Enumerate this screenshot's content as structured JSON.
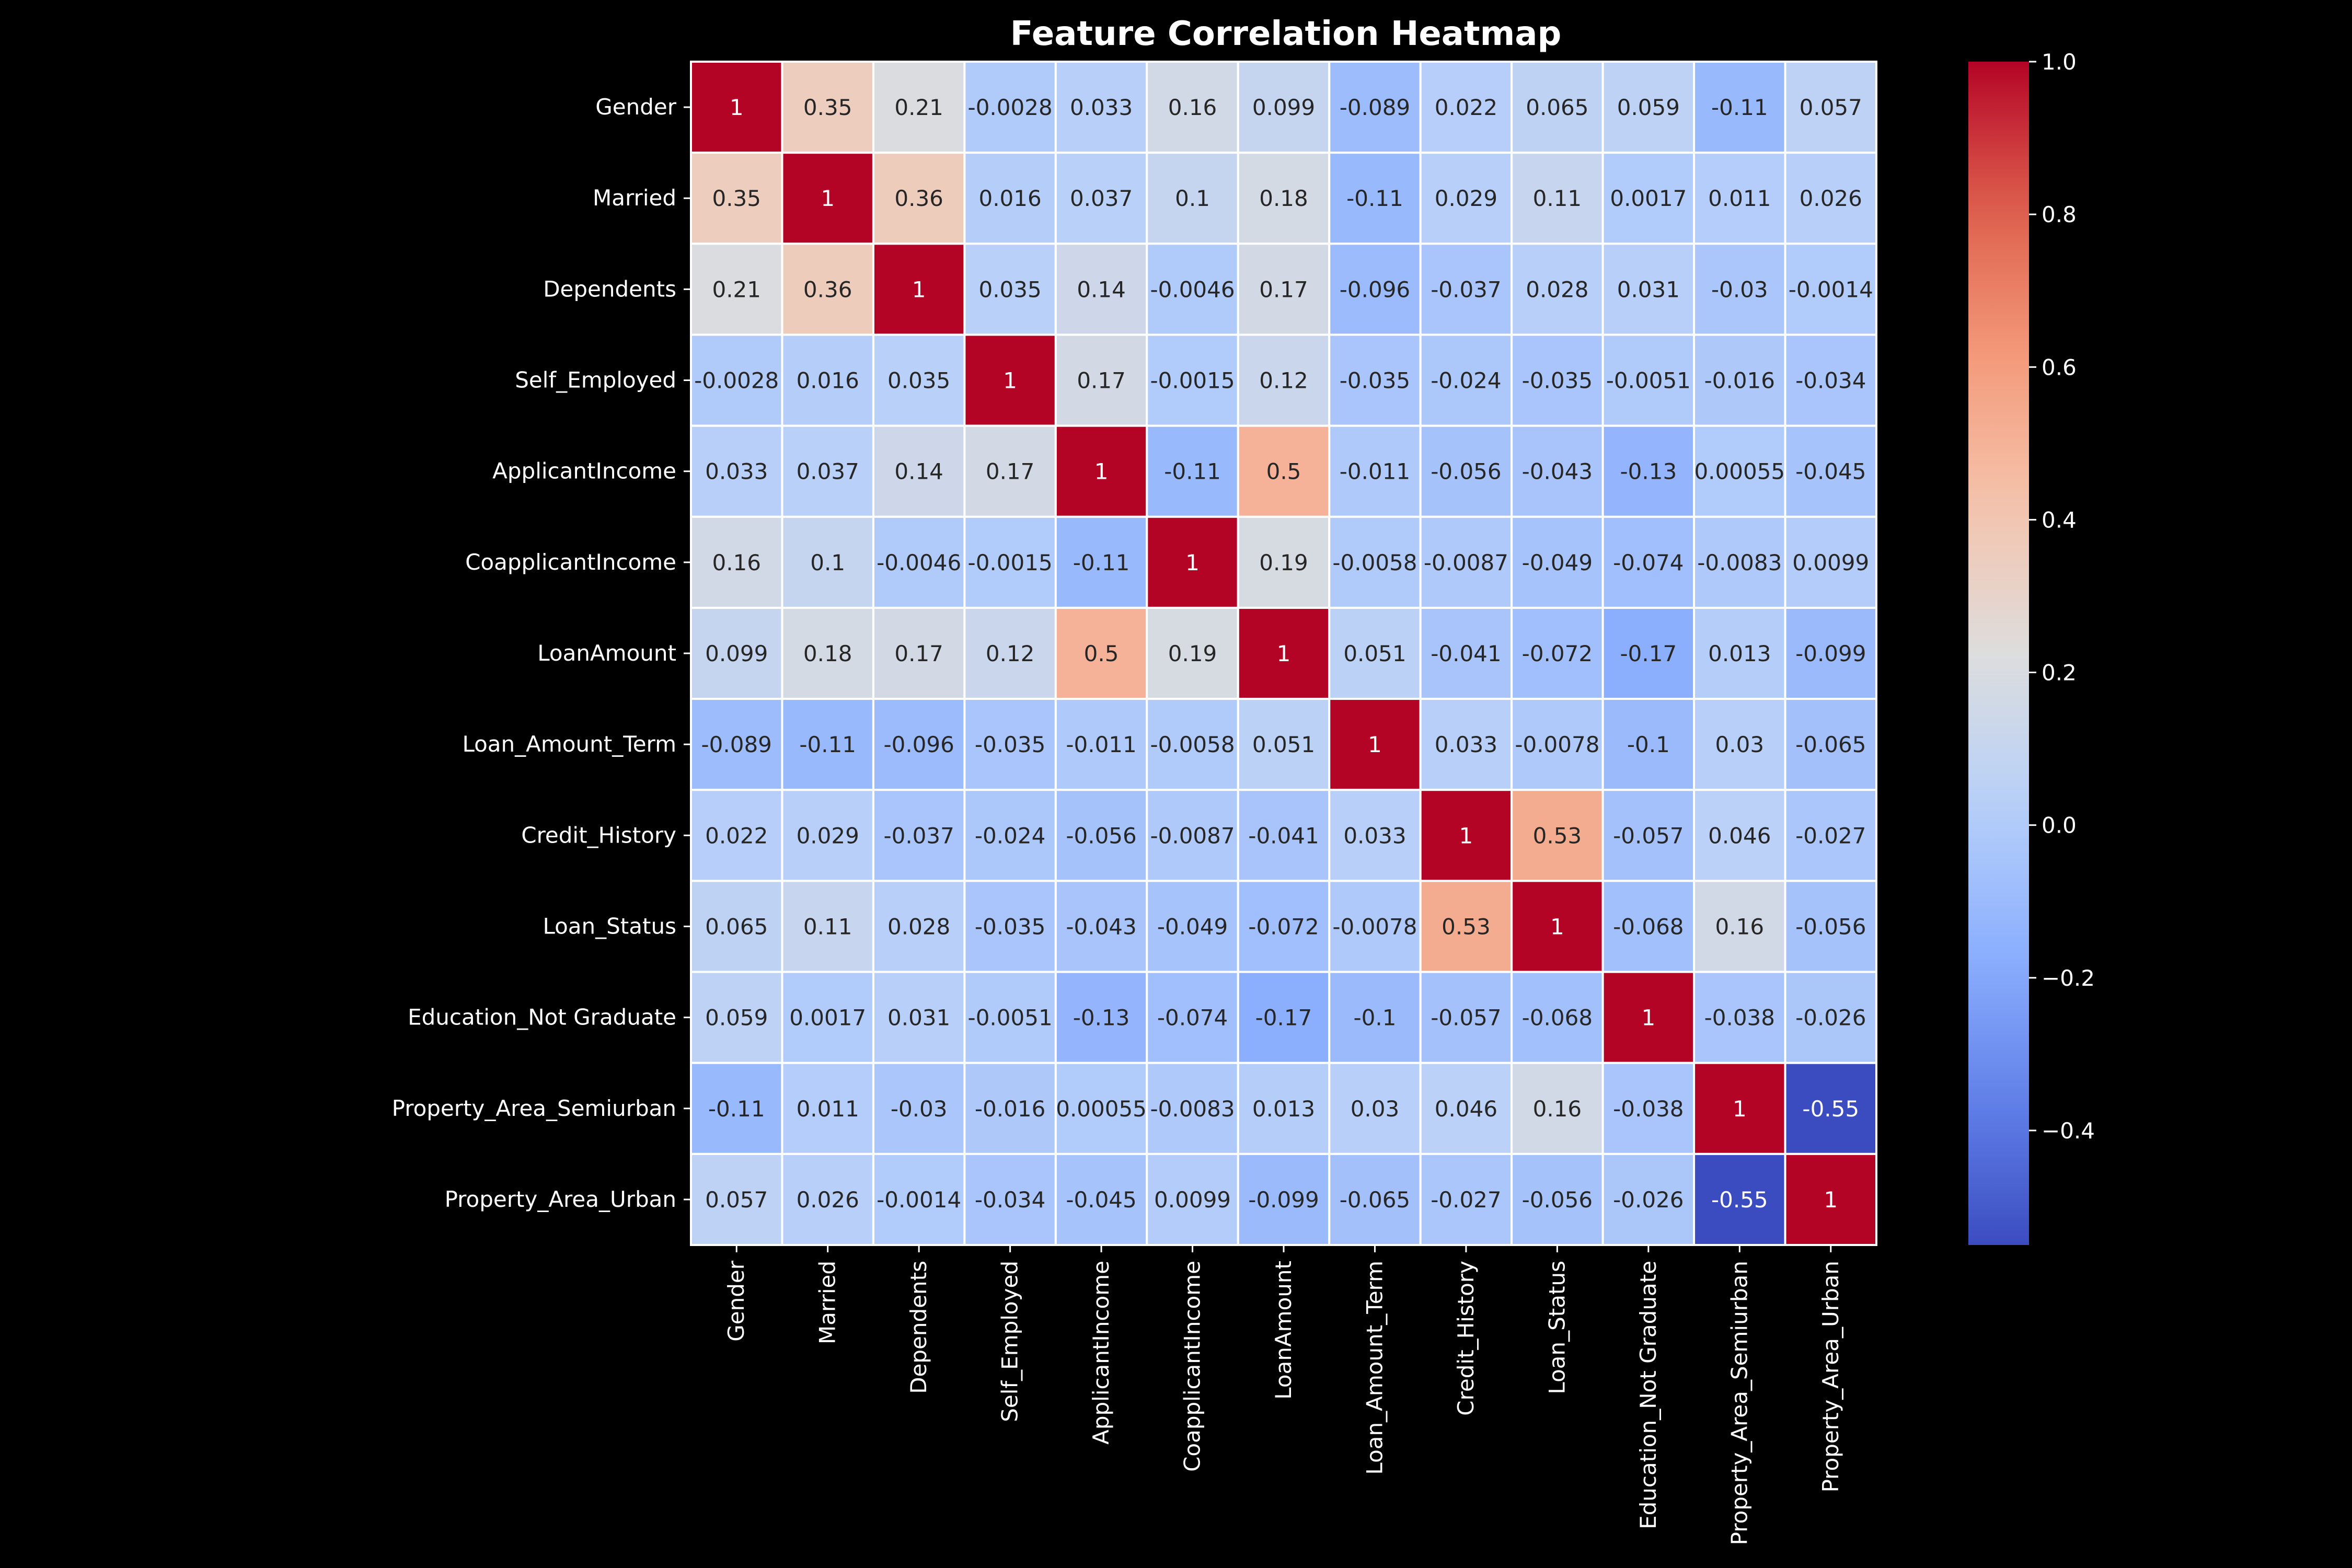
{
  "chart_data": {
    "type": "heatmap",
    "title": "Feature Correlation Heatmap",
    "labels": [
      "Gender",
      "Married",
      "Dependents",
      "Self_Employed",
      "ApplicantIncome",
      "CoapplicantIncome",
      "LoanAmount",
      "Loan_Amount_Term",
      "Credit_History",
      "Loan_Status",
      "Education_Not Graduate",
      "Property_Area_Semiurban",
      "Property_Area_Urban"
    ],
    "matrix": [
      [
        1,
        0.35,
        0.21,
        -0.0028,
        0.033,
        0.16,
        0.099,
        -0.089,
        0.022,
        0.065,
        0.059,
        -0.11,
        0.057
      ],
      [
        0.35,
        1,
        0.36,
        0.016,
        0.037,
        0.1,
        0.18,
        -0.11,
        0.029,
        0.11,
        0.0017,
        0.011,
        0.026
      ],
      [
        0.21,
        0.36,
        1,
        0.035,
        0.14,
        -0.0046,
        0.17,
        -0.096,
        -0.037,
        0.028,
        0.031,
        -0.03,
        -0.0014
      ],
      [
        -0.0028,
        0.016,
        0.035,
        1,
        0.17,
        -0.0015,
        0.12,
        -0.035,
        -0.024,
        -0.035,
        -0.0051,
        -0.016,
        -0.034
      ],
      [
        0.033,
        0.037,
        0.14,
        0.17,
        1,
        -0.11,
        0.5,
        -0.011,
        -0.056,
        -0.043,
        -0.13,
        0.00055,
        -0.045
      ],
      [
        0.16,
        0.1,
        -0.0046,
        -0.0015,
        -0.11,
        1,
        0.19,
        -0.0058,
        -0.0087,
        -0.049,
        -0.074,
        -0.0083,
        0.0099
      ],
      [
        0.099,
        0.18,
        0.17,
        0.12,
        0.5,
        0.19,
        1,
        0.051,
        -0.041,
        -0.072,
        -0.17,
        0.013,
        -0.099
      ],
      [
        -0.089,
        -0.11,
        -0.096,
        -0.035,
        -0.011,
        -0.0058,
        0.051,
        1,
        0.033,
        -0.0078,
        -0.1,
        0.03,
        -0.065
      ],
      [
        0.022,
        0.029,
        -0.037,
        -0.024,
        -0.056,
        -0.0087,
        -0.041,
        0.033,
        1,
        0.53,
        -0.057,
        0.046,
        -0.027
      ],
      [
        0.065,
        0.11,
        0.028,
        -0.035,
        -0.043,
        -0.049,
        -0.072,
        -0.0078,
        0.53,
        1,
        -0.068,
        0.16,
        -0.056
      ],
      [
        0.059,
        0.0017,
        0.031,
        -0.0051,
        -0.13,
        -0.074,
        -0.17,
        -0.1,
        -0.057,
        -0.068,
        1,
        -0.038,
        -0.026
      ],
      [
        -0.11,
        0.011,
        -0.03,
        -0.016,
        0.00055,
        -0.0083,
        0.013,
        0.03,
        0.046,
        0.16,
        -0.038,
        1,
        -0.55
      ],
      [
        0.057,
        0.026,
        -0.0014,
        -0.034,
        -0.045,
        0.0099,
        -0.099,
        -0.065,
        -0.027,
        -0.056,
        -0.026,
        -0.55,
        1
      ]
    ],
    "colormap": "coolwarm",
    "vmin": -0.55,
    "vmax": 1.0,
    "colorbar_ticks": [
      1.0,
      0.8,
      0.6,
      0.4,
      0.2,
      0.0,
      -0.2,
      -0.4
    ],
    "colorbar_tick_labels": [
      "1.0",
      "0.8",
      "0.6",
      "0.4",
      "0.2",
      "0.0",
      "−0.2",
      "−0.4"
    ],
    "annotations": true,
    "grid_line_color": "#ffffff",
    "background_color": "#000000",
    "text_color": "#ffffff"
  }
}
